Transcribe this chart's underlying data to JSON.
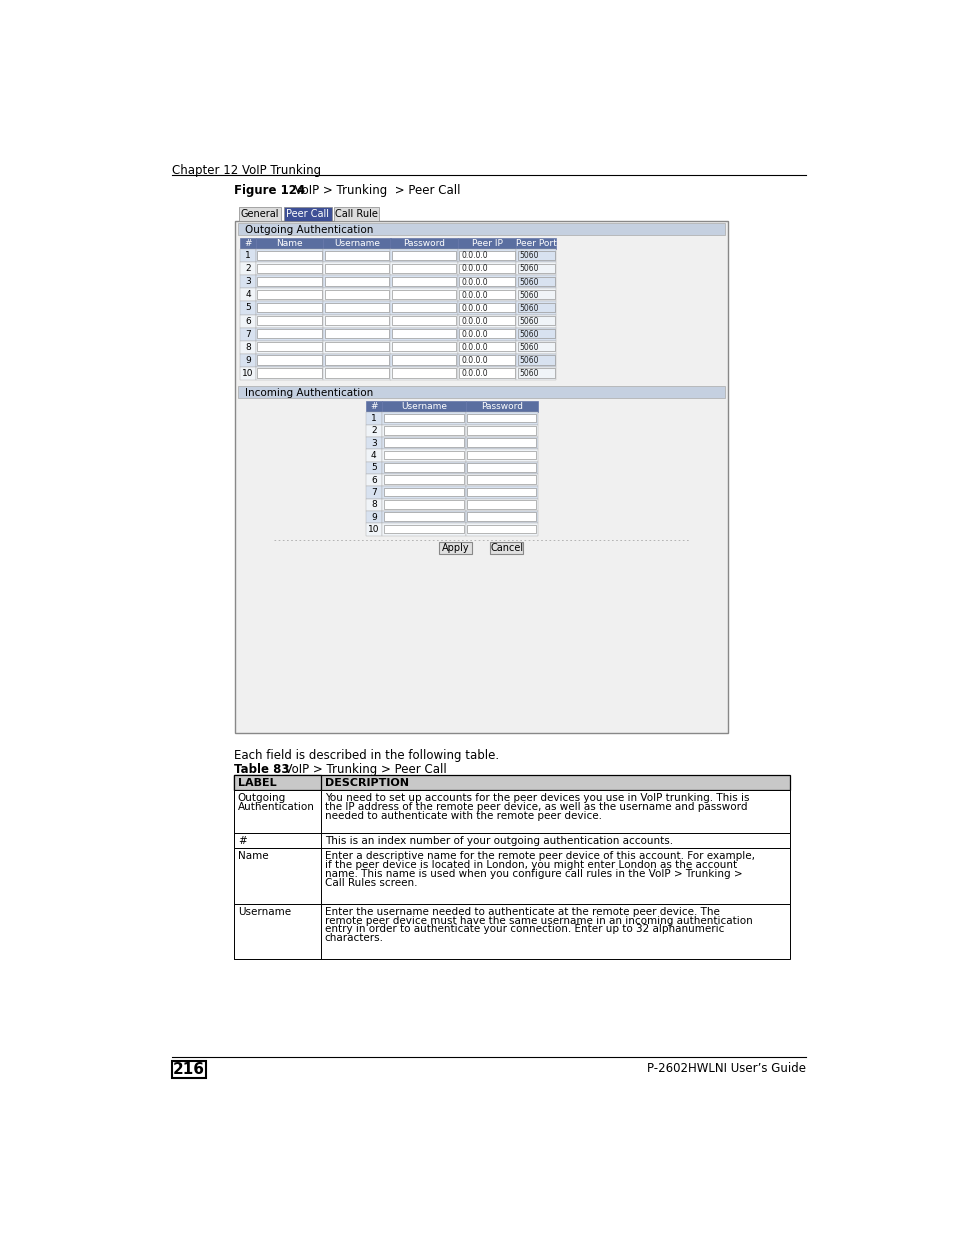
{
  "page_header": "Chapter 12 VoIP Trunking",
  "figure_label": "Figure 124",
  "figure_title": "VoIP > Trunking  > Peer Call",
  "tab_labels": [
    "General",
    "Peer Call",
    "Call Rule"
  ],
  "active_tab": "Peer Call",
  "outgoing_header": "Outgoing Authentication",
  "outgoing_columns": [
    "#",
    "Name",
    "Username",
    "Password",
    "Peer IP",
    "Peer Port"
  ],
  "outgoing_rows": 10,
  "peer_ip_default": "0.0.0.0",
  "peer_port_default": "5060",
  "incoming_header": "Incoming Authentication",
  "incoming_columns": [
    "#",
    "Username",
    "Password"
  ],
  "incoming_rows": 10,
  "button_apply": "Apply",
  "button_cancel": "Cancel",
  "table_label": "Table 83",
  "table_title": "VoIP > Trunking > Peer Call",
  "table_header_label": "LABEL",
  "table_header_desc": "DESCRIPTION",
  "table_rows": [
    {
      "label": "Outgoing\nAuthentication",
      "desc": "You need to set up accounts for the peer devices you use in VoIP trunking. This is\nthe IP address of the remote peer device, as well as the username and password\nneeded to authenticate with the remote peer device."
    },
    {
      "label": "#",
      "desc": "This is an index number of your outgoing authentication accounts."
    },
    {
      "label": "Name",
      "desc": "Enter a descriptive name for the remote peer device of this account. For example,\nif the peer device is located in London, you might enter London as the account\nname. This name is used when you configure call rules in the VoIP > Trunking >\nCall Rules screen."
    },
    {
      "label": "Username",
      "desc": "Enter the username needed to authenticate at the remote peer device. The\nremote peer device must have the same username in an incoming authentication\nentry in order to authenticate your connection. Enter up to 32 alphanumeric\ncharacters."
    }
  ],
  "page_number": "216",
  "page_footer": "P-2602HWLNI User’s Guide",
  "bg_color": "#ffffff",
  "header_line_color": "#000000",
  "tab_active_bg": "#3d4f96",
  "tab_inactive_bg": "#dcdcdc",
  "tab_active_fg": "#ffffff",
  "tab_inactive_fg": "#000000",
  "section_header_bg": "#c5d0e0",
  "section_header_fg": "#000000",
  "col_header_bg": "#5a6ea0",
  "col_header_fg": "#ffffff",
  "row_odd_bg": "#d8e2f0",
  "row_even_bg": "#f0f4f8",
  "input_bg": "#ffffff",
  "input_border": "#aaaaaa",
  "panel_bg": "#f5f5f5",
  "panel_border": "#999999",
  "table_header_bg": "#c8c8c8",
  "table_header_fg": "#000000",
  "table_border": "#000000",
  "figure_area_bg": "#f0f0f0",
  "figure_area_border": "#888888",
  "footer_line_color": "#000000"
}
